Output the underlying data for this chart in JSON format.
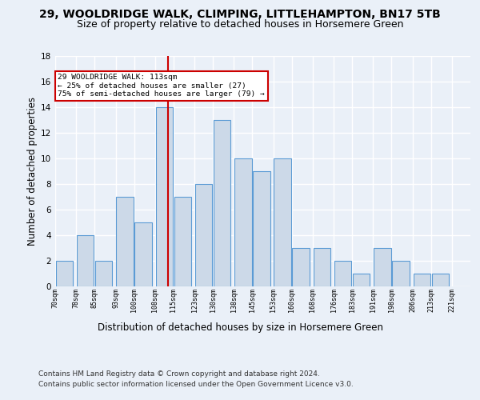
{
  "title1": "29, WOOLDRIDGE WALK, CLIMPING, LITTLEHAMPTON, BN17 5TB",
  "title2": "Size of property relative to detached houses in Horsemere Green",
  "xlabel": "Distribution of detached houses by size in Horsemere Green",
  "ylabel": "Number of detached properties",
  "footnote1": "Contains HM Land Registry data © Crown copyright and database right 2024.",
  "footnote2": "Contains public sector information licensed under the Open Government Licence v3.0.",
  "bar_left_edges": [
    70,
    78,
    85,
    93,
    100,
    108,
    115,
    123,
    130,
    138,
    145,
    153,
    160,
    168,
    176,
    183,
    191,
    198,
    206,
    213
  ],
  "bar_heights": [
    2,
    4,
    2,
    7,
    5,
    14,
    7,
    8,
    13,
    10,
    9,
    10,
    3,
    3,
    2,
    1,
    3,
    2,
    1,
    1
  ],
  "bin_width": 7,
  "bar_color": "#ccd9e8",
  "bar_edgecolor": "#5b9bd5",
  "tick_labels": [
    "70sqm",
    "78sqm",
    "85sqm",
    "93sqm",
    "100sqm",
    "108sqm",
    "115sqm",
    "123sqm",
    "130sqm",
    "138sqm",
    "145sqm",
    "153sqm",
    "160sqm",
    "168sqm",
    "176sqm",
    "183sqm",
    "191sqm",
    "198sqm",
    "206sqm",
    "213sqm",
    "221sqm"
  ],
  "vline_x": 113,
  "vline_color": "#cc0000",
  "annotation_text": "29 WOOLDRIDGE WALK: 113sqm\n← 25% of detached houses are smaller (27)\n75% of semi-detached houses are larger (79) →",
  "annotation_box_color": "#ffffff",
  "annotation_box_edgecolor": "#cc0000",
  "ylim": [
    0,
    18
  ],
  "yticks": [
    0,
    2,
    4,
    6,
    8,
    10,
    12,
    14,
    16,
    18
  ],
  "bg_color": "#eaf0f8",
  "plot_bg_color": "#eaf0f8",
  "grid_color": "#ffffff",
  "title1_fontsize": 10,
  "title2_fontsize": 9,
  "xlabel_fontsize": 8.5,
  "ylabel_fontsize": 8.5,
  "footnote_fontsize": 6.5
}
